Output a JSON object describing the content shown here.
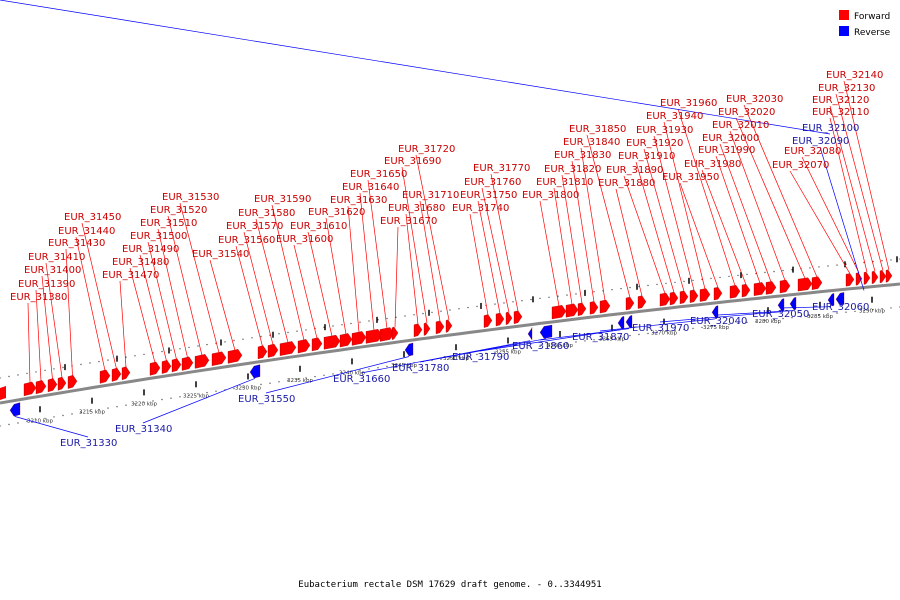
{
  "caption": "Eubacterium rectale DSM 17629 draft genome. - 0..3344951",
  "legend": [
    {
      "label": "Forward",
      "color": "#ff0000"
    },
    {
      "label": "Reverse",
      "color": "#0000ff"
    }
  ],
  "colors": {
    "forward": "#ff0000",
    "reverse": "#0000ff",
    "backbone": "#888888"
  },
  "axis": {
    "unit": "kbp",
    "ticks": [
      "3210 kbp",
      "3215 kbp",
      "3220 kbp",
      "3225 kbp",
      "3230 kbp",
      "3235 kbp",
      "3240 kbp",
      "3245 kbp",
      "3250 kbp",
      "3255 kbp",
      "3260 kbp",
      "3265 kbp",
      "3270 kbp",
      "3275 kbp",
      "3280 kbp",
      "3285 kbp",
      "3290 kbp"
    ]
  },
  "forward_genes": [
    "EUR_31380",
    "EUR_31390",
    "EUR_31400",
    "EUR_31410",
    "EUR_31430",
    "EUR_31440",
    "EUR_31450",
    "EUR_31470",
    "EUR_31480",
    "EUR_31490",
    "EUR_31500",
    "EUR_31510",
    "EUR_31520",
    "EUR_31530",
    "EUR_31540",
    "EUR_31560",
    "EUR_31570",
    "EUR_31580",
    "EUR_31590",
    "EUR_31600",
    "EUR_31610",
    "EUR_31620",
    "EUR_31630",
    "EUR_31640",
    "EUR_31650",
    "EUR_31670",
    "EUR_31680",
    "EUR_31690",
    "EUR_31710",
    "EUR_31720",
    "EUR_31740",
    "EUR_31750",
    "EUR_31760",
    "EUR_31770",
    "EUR_31800",
    "EUR_31810",
    "EUR_31820",
    "EUR_31830",
    "EUR_31840",
    "EUR_31850",
    "EUR_31880",
    "EUR_31890",
    "EUR_31910",
    "EUR_31920",
    "EUR_31930",
    "EUR_31940",
    "EUR_31950",
    "EUR_31960",
    "EUR_31980",
    "EUR_31990",
    "EUR_32000",
    "EUR_32010",
    "EUR_32020",
    "EUR_32030",
    "EUR_32070",
    "EUR_32080",
    "EUR_32110",
    "EUR_32120",
    "EUR_32130",
    "EUR_32140"
  ],
  "reverse_genes": [
    "EUR_31330",
    "EUR_31340",
    "EUR_31550",
    "EUR_31660",
    "EUR_31780",
    "EUR_31790",
    "EUR_31860",
    "EUR_31870",
    "EUR_31970",
    "EUR_32040",
    "EUR_32050",
    "EUR_32060",
    "EUR_32090",
    "EUR_32100"
  ]
}
